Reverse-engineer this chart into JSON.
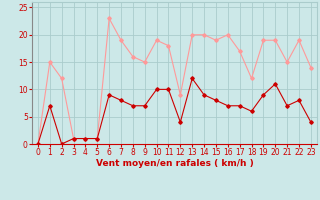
{
  "hours": [
    0,
    1,
    2,
    3,
    4,
    5,
    6,
    7,
    8,
    9,
    10,
    11,
    12,
    13,
    14,
    15,
    16,
    17,
    18,
    19,
    20,
    21,
    22,
    23
  ],
  "wind_avg": [
    0,
    7,
    0,
    1,
    1,
    1,
    9,
    8,
    7,
    7,
    10,
    10,
    4,
    12,
    9,
    8,
    7,
    7,
    6,
    9,
    11,
    7,
    8,
    4
  ],
  "wind_gust": [
    0,
    15,
    12,
    1,
    1,
    1,
    23,
    19,
    16,
    15,
    19,
    18,
    9,
    20,
    20,
    19,
    20,
    17,
    12,
    19,
    19,
    15,
    19,
    14
  ],
  "avg_color": "#cc0000",
  "gust_color": "#ff9999",
  "bg_color": "#cce8e8",
  "grid_color": "#aacccc",
  "xlabel": "Vent moyen/en rafales ( km/h )",
  "xlabel_color": "#cc0000",
  "tick_color": "#cc0000",
  "ylim": [
    0,
    26
  ],
  "yticks": [
    0,
    5,
    10,
    15,
    20,
    25
  ],
  "label_fontsize": 6.5,
  "tick_fontsize": 5.5
}
